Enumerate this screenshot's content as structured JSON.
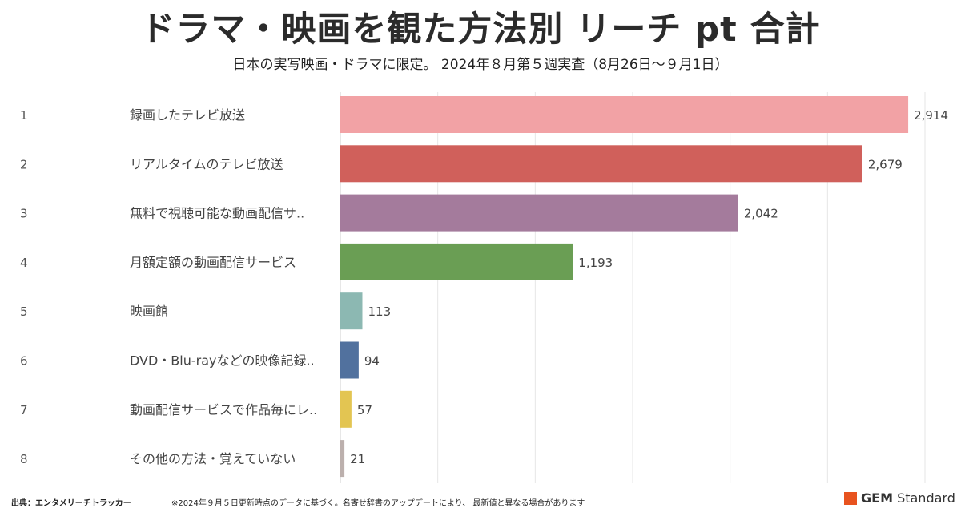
{
  "title": "ドラマ・映画を観た方法別 リーチ pt 合計",
  "subtitle": "日本の実写映画・ドラマに限定。 2024年８月第５週実査（8月26日～９月1日）",
  "chart_data": {
    "type": "bar",
    "orientation": "horizontal",
    "ranks": [
      "1",
      "2",
      "3",
      "4",
      "5",
      "6",
      "7",
      "8"
    ],
    "categories": [
      "録画したテレビ放送",
      "リアルタイムのテレビ放送",
      "無料で視聴可能な動画配信サ..",
      "月額定額の動画配信サービス",
      "映画館",
      "DVD・Blu-rayなどの映像記録..",
      "動画配信サービスで作品毎にレ..",
      "その他の方法・覚えていない"
    ],
    "values": [
      2914,
      2679,
      2042,
      1193,
      113,
      94,
      57,
      21
    ],
    "value_labels": [
      "2,914",
      "2,679",
      "2,042",
      "1,193",
      "113",
      "94",
      "57",
      "21"
    ],
    "colors": [
      "#f2a2a5",
      "#d0605b",
      "#a47b9c",
      "#6a9e54",
      "#8cb8b2",
      "#51719e",
      "#e3c552",
      "#bcb0ad"
    ],
    "xlim": [
      0,
      3000
    ],
    "grid": true,
    "legend": "none"
  },
  "footer": {
    "source": "出典：エンタメリーチトラッカー",
    "note": "※2024年９月５日更新時点のデータに基づく。名寄せ辞書のアップデートにより、 最新値と異なる場合があります",
    "brand_bold": "GEM",
    "brand_rest": " Standard"
  }
}
